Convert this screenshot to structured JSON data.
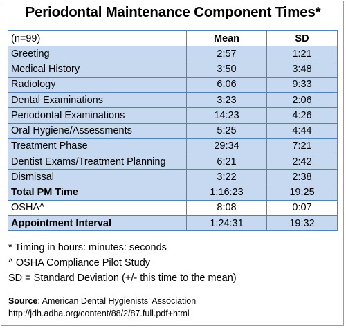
{
  "title": "Periodontal Maintenance Component Times*",
  "table": {
    "header": {
      "label": "(n=99)",
      "mean": "Mean",
      "sd": "SD"
    },
    "rows": [
      {
        "label": "Greeting",
        "mean": "2:57",
        "sd": "1:21"
      },
      {
        "label": "Medical History",
        "mean": "3:50",
        "sd": "3:48"
      },
      {
        "label": "Radiology",
        "mean": "6:06",
        "sd": "9:33"
      },
      {
        "label": "Dental Examinations",
        "mean": "3:23",
        "sd": "2:06"
      },
      {
        "label": "Periodontal Examinations",
        "mean": "14:23",
        "sd": "4:26"
      },
      {
        "label": "Oral Hygiene/Assessments",
        "mean": "5:25",
        "sd": "4:44"
      },
      {
        "label": "Treatment Phase",
        "mean": "29:34",
        "sd": "7:21"
      },
      {
        "label": "Dentist Exams/Treatment Planning",
        "mean": "6:21",
        "sd": "2:42"
      },
      {
        "label": "Dismissal",
        "mean": "3:22",
        "sd": "2:38"
      },
      {
        "label": "Total PM Time",
        "mean": "1:16:23",
        "sd": "19:25"
      },
      {
        "label": "OSHA^",
        "mean": "8:08",
        "sd": "0:07"
      },
      {
        "label": "Appointment Interval",
        "mean": "1:24:31",
        "sd": "19:32"
      }
    ]
  },
  "notes": [
    "* Timing in hours:  minutes: seconds",
    "^ OSHA Compliance Pilot Study",
    "SD = Standard Deviation (+/- this time to the mean)"
  ],
  "source": {
    "label": "Source",
    "text": ": American Dental Hygienists’ Association",
    "url": "http://jdh.adha.org/content/88/2/87.full.pdf+html"
  }
}
